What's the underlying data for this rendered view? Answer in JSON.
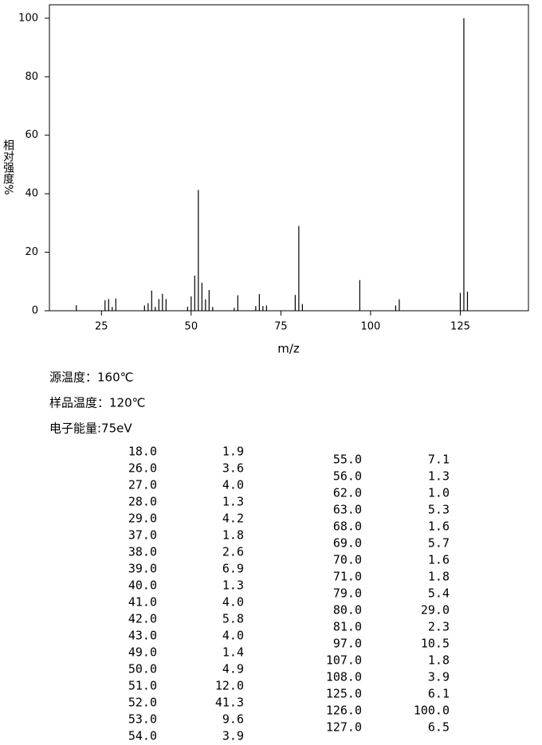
{
  "chart_data": {
    "type": "bar",
    "x_label": "m/z",
    "y_label": "相对强度%",
    "x": [
      18,
      26,
      27,
      28,
      29,
      37,
      38,
      39,
      40,
      41,
      42,
      43,
      49,
      50,
      51,
      52,
      53,
      54,
      55,
      56,
      62,
      63,
      68,
      69,
      70,
      71,
      79,
      80,
      81,
      97,
      107,
      108,
      125,
      126,
      127
    ],
    "values": [
      1.9,
      3.6,
      4.0,
      1.3,
      4.2,
      1.8,
      2.6,
      6.9,
      1.3,
      4.0,
      5.8,
      4.0,
      1.4,
      4.9,
      12.0,
      41.3,
      9.6,
      3.9,
      7.1,
      1.3,
      1.0,
      5.3,
      1.6,
      5.7,
      1.6,
      1.8,
      5.4,
      29.0,
      2.3,
      10.5,
      1.8,
      3.9,
      6.1,
      100.0,
      6.5
    ],
    "color": "#000000",
    "xlim": [
      10.5,
      144
    ],
    "ylim": [
      0,
      104.6
    ],
    "xticks": [
      25,
      50,
      75,
      100,
      125
    ],
    "yticks": [
      0,
      20,
      40,
      60,
      80,
      100
    ]
  },
  "info": [
    "源温度：160℃",
    "样品温度：120℃",
    "电子能量:75eV"
  ],
  "table": {
    "left": [
      [
        "18.0",
        "1.9"
      ],
      [
        "26.0",
        "3.6"
      ],
      [
        "27.0",
        "4.0"
      ],
      [
        "28.0",
        "1.3"
      ],
      [
        "29.0",
        "4.2"
      ],
      [
        "37.0",
        "1.8"
      ],
      [
        "38.0",
        "2.6"
      ],
      [
        "39.0",
        "6.9"
      ],
      [
        "40.0",
        "1.3"
      ],
      [
        "41.0",
        "4.0"
      ],
      [
        "42.0",
        "5.8"
      ],
      [
        "43.0",
        "4.0"
      ],
      [
        "49.0",
        "1.4"
      ],
      [
        "50.0",
        "4.9"
      ],
      [
        "51.0",
        "12.0"
      ],
      [
        "52.0",
        "41.3"
      ],
      [
        "53.0",
        "9.6"
      ],
      [
        "54.0",
        "3.9"
      ]
    ],
    "right": [
      [
        "55.0",
        "7.1"
      ],
      [
        "56.0",
        "1.3"
      ],
      [
        "62.0",
        "1.0"
      ],
      [
        "63.0",
        "5.3"
      ],
      [
        "68.0",
        "1.6"
      ],
      [
        "69.0",
        "5.7"
      ],
      [
        "70.0",
        "1.6"
      ],
      [
        "71.0",
        "1.8"
      ],
      [
        "79.0",
        "5.4"
      ],
      [
        "80.0",
        "29.0"
      ],
      [
        "81.0",
        "2.3"
      ],
      [
        "97.0",
        "10.5"
      ],
      [
        "107.0",
        "1.8"
      ],
      [
        "108.0",
        "3.9"
      ],
      [
        "125.0",
        "6.1"
      ],
      [
        "126.0",
        "100.0"
      ],
      [
        "127.0",
        "6.5"
      ]
    ]
  }
}
